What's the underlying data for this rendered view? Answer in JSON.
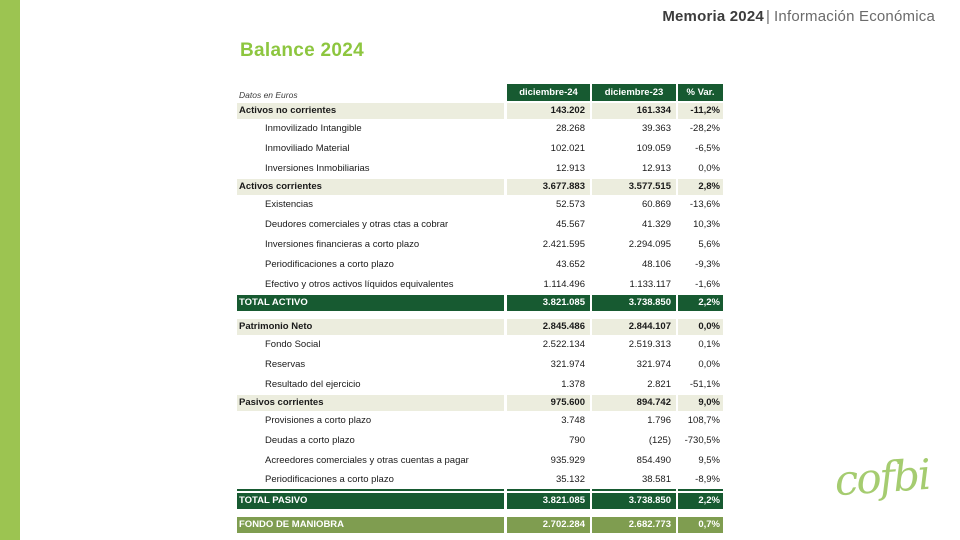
{
  "header": {
    "title_bold": "Memoria 2024",
    "separator": "|",
    "title_light": "Información Económica"
  },
  "slide_title": "Balance 2024",
  "logo_text": "cofbi",
  "colors": {
    "accent_green_bar": "#9cc451",
    "title_green": "#8dc63f",
    "table_dark_green": "#175a31",
    "table_olive_green": "#7f9d50",
    "section_row_bg": "#ecedde",
    "logo_green": "#a5cc70"
  },
  "table": {
    "note": "Datos en Euros",
    "columns": [
      "diciembre-24",
      "diciembre-23",
      "% Var."
    ],
    "rows": [
      {
        "type": "section",
        "label": "Activos no corrientes",
        "v1": "143.202",
        "v2": "161.334",
        "var": "-11,2%"
      },
      {
        "type": "item",
        "label": "Inmovilizado Intangible",
        "v1": "28.268",
        "v2": "39.363",
        "var": "-28,2%"
      },
      {
        "type": "item",
        "label": "Inmoviliado Material",
        "v1": "102.021",
        "v2": "109.059",
        "var": "-6,5%"
      },
      {
        "type": "item",
        "label": "Inversiones Inmobiliarias",
        "v1": "12.913",
        "v2": "12.913",
        "var": "0,0%"
      },
      {
        "type": "section",
        "label": "Activos corrientes",
        "v1": "3.677.883",
        "v2": "3.577.515",
        "var": "2,8%"
      },
      {
        "type": "item",
        "label": "Existencias",
        "v1": "52.573",
        "v2": "60.869",
        "var": "-13,6%"
      },
      {
        "type": "item",
        "label": "Deudores comerciales y otras ctas a cobrar",
        "v1": "45.567",
        "v2": "41.329",
        "var": "10,3%"
      },
      {
        "type": "item",
        "label": "Inversiones financieras a corto plazo",
        "v1": "2.421.595",
        "v2": "2.294.095",
        "var": "5,6%"
      },
      {
        "type": "item",
        "label": "Periodificaciones a corto plazo",
        "v1": "43.652",
        "v2": "48.106",
        "var": "-9,3%"
      },
      {
        "type": "item",
        "label": "Efectivo y otros activos líquidos equivalentes",
        "v1": "1.114.496",
        "v2": "1.133.117",
        "var": "-1,6%"
      },
      {
        "type": "total",
        "label": "TOTAL ACTIVO",
        "v1": "3.821.085",
        "v2": "3.738.850",
        "var": "2,2%"
      },
      {
        "type": "gap"
      },
      {
        "type": "section",
        "label": "Patrimonio Neto",
        "v1": "2.845.486",
        "v2": "2.844.107",
        "var": "0,0%"
      },
      {
        "type": "item",
        "label": "Fondo Social",
        "v1": "2.522.134",
        "v2": "2.519.313",
        "var": "0,1%"
      },
      {
        "type": "item",
        "label": "Reservas",
        "v1": "321.974",
        "v2": "321.974",
        "var": "0,0%"
      },
      {
        "type": "item",
        "label": "Resultado del ejercicio",
        "v1": "1.378",
        "v2": "2.821",
        "var": "-51,1%"
      },
      {
        "type": "section",
        "label": "Pasivos corrientes",
        "v1": "975.600",
        "v2": "894.742",
        "var": "9,0%"
      },
      {
        "type": "item",
        "label": "Provisiones a corto plazo",
        "v1": "3.748",
        "v2": "1.796",
        "var": "108,7%"
      },
      {
        "type": "item",
        "label": "Deudas a corto plazo",
        "v1": "790",
        "v2": "(125)",
        "var": "-730,5%"
      },
      {
        "type": "item",
        "label": "Acreedores comerciales y otras cuentas a pagar",
        "v1": "935.929",
        "v2": "854.490",
        "var": "9,5%"
      },
      {
        "type": "item",
        "label": "Periodificaciones a corto plazo",
        "v1": "35.132",
        "v2": "38.581",
        "var": "-8,9%",
        "underline": true
      },
      {
        "type": "total",
        "label": "TOTAL PASIVO",
        "v1": "3.821.085",
        "v2": "3.738.850",
        "var": "2,2%"
      },
      {
        "type": "gap"
      },
      {
        "type": "fondo",
        "label": "FONDO DE MANIOBRA",
        "v1": "2.702.284",
        "v2": "2.682.773",
        "var": "0,7%"
      }
    ]
  }
}
